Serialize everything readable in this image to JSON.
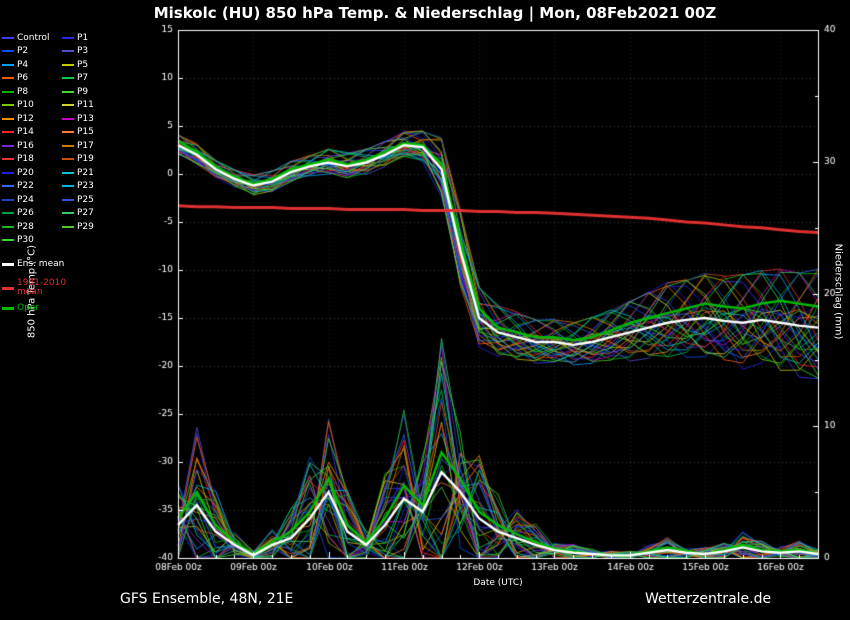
{
  "title": "Miskolc  (HU)  850 hPa Temp. & Niederschlag | Mon, 08Feb2021 00Z",
  "footer": {
    "left": "GFS Ensemble, 48N, 21E",
    "right": "Wetterzentrale.de"
  },
  "axes": {
    "left_label": "850 hPa Temp (°C)",
    "right_label": "Niederschlag (mm)",
    "x_label": "Date (UTC)",
    "left_ticks": [
      15,
      10,
      5,
      0,
      -5,
      -10,
      -15,
      -20,
      -25,
      -30,
      -35,
      -40
    ],
    "right_ticks": [
      40,
      30,
      20,
      10,
      0
    ],
    "x_tick_labels": [
      "08Feb 00z",
      "09Feb 00z",
      "10Feb 00z",
      "11Feb 00z",
      "12Feb 00z",
      "13Feb 00z",
      "14Feb 00z",
      "15Feb 00z",
      "16Feb 00z"
    ],
    "temp_range": [
      -40,
      15
    ],
    "precip_range": [
      0,
      40
    ]
  },
  "legend": {
    "members": [
      {
        "label": "Control",
        "color": "#3a3aff"
      },
      {
        "label": "P1",
        "color": "#2626e6"
      },
      {
        "label": "P2",
        "color": "#0050ff"
      },
      {
        "label": "P3",
        "color": "#5050cc"
      },
      {
        "label": "P4",
        "color": "#00a0ff"
      },
      {
        "label": "P5",
        "color": "#c8c800"
      },
      {
        "label": "P6",
        "color": "#ff5a00"
      },
      {
        "label": "P7",
        "color": "#00c850"
      },
      {
        "label": "P8",
        "color": "#00b400"
      },
      {
        "label": "P9",
        "color": "#3cdc3c"
      },
      {
        "label": "P10",
        "color": "#78c800"
      },
      {
        "label": "P11",
        "color": "#d2d232"
      },
      {
        "label": "P12",
        "color": "#ff8c00"
      },
      {
        "label": "P13",
        "color": "#c800c8"
      },
      {
        "label": "P14",
        "color": "#ff2020"
      },
      {
        "label": "P15",
        "color": "#ff7a3c"
      },
      {
        "label": "P16",
        "color": "#7a28c8"
      },
      {
        "label": "P17",
        "color": "#d27800"
      },
      {
        "label": "P18",
        "color": "#e63232"
      },
      {
        "label": "P19",
        "color": "#c85000"
      },
      {
        "label": "P20",
        "color": "#2020dc"
      },
      {
        "label": "P21",
        "color": "#00c8c8"
      },
      {
        "label": "P22",
        "color": "#3264ff"
      },
      {
        "label": "P23",
        "color": "#00b4dc"
      },
      {
        "label": "P24",
        "color": "#2040c0"
      },
      {
        "label": "P25",
        "color": "#3050e0"
      },
      {
        "label": "P26",
        "color": "#00a044"
      },
      {
        "label": "P27",
        "color": "#32c864"
      },
      {
        "label": "P28",
        "color": "#20b420"
      },
      {
        "label": "P29",
        "color": "#50c832"
      },
      {
        "label": "P30",
        "color": "#32dc32"
      }
    ],
    "ens_mean": {
      "label": "Ens. mean",
      "color": "#ffffff"
    },
    "climate": {
      "label_line1": "1981-2010",
      "label_line2": "mean",
      "color": "#e03030"
    },
    "oper": {
      "label": "Oper",
      "color": "#00bb00"
    }
  },
  "chart_data": {
    "type": "line",
    "x_step_hours": 6,
    "x_start": "08Feb2021 00z",
    "x_end": "16Feb2021 12z",
    "temp_ens_mean": [
      3.0,
      2.0,
      0.5,
      -0.5,
      -1.2,
      -0.8,
      0.2,
      0.8,
      1.2,
      0.8,
      1.2,
      2.0,
      3.0,
      2.8,
      0.5,
      -8.0,
      -15.0,
      -16.5,
      -17.0,
      -17.5,
      -17.5,
      -17.8,
      -17.5,
      -17.0,
      -16.5,
      -16.0,
      -15.5,
      -15.2,
      -15.0,
      -15.3,
      -15.5,
      -15.2,
      -15.5,
      -15.8,
      -16.0
    ],
    "temp_spread": [
      1.2,
      1.2,
      1.0,
      1.0,
      1.2,
      1.2,
      1.2,
      1.2,
      1.5,
      1.5,
      1.5,
      1.5,
      1.5,
      1.8,
      3.5,
      4.5,
      3.5,
      3.0,
      2.8,
      2.5,
      2.5,
      2.5,
      2.8,
      3.0,
      3.5,
      4.0,
      4.5,
      4.5,
      5.0,
      5.0,
      5.5,
      5.5,
      6.0,
      6.0,
      6.5
    ],
    "temp_climate_mean": [
      -3.3,
      -3.4,
      -3.4,
      -3.5,
      -3.5,
      -3.5,
      -3.6,
      -3.6,
      -3.6,
      -3.7,
      -3.7,
      -3.7,
      -3.7,
      -3.8,
      -3.8,
      -3.8,
      -3.9,
      -3.9,
      -4.0,
      -4.0,
      -4.1,
      -4.2,
      -4.3,
      -4.4,
      -4.5,
      -4.6,
      -4.8,
      -5.0,
      -5.1,
      -5.3,
      -5.5,
      -5.6,
      -5.8,
      -6.0,
      -6.1
    ],
    "temp_oper": [
      3.5,
      2.3,
      0.8,
      -0.3,
      -1.0,
      -0.5,
      0.5,
      1.0,
      1.5,
      1.0,
      1.5,
      2.3,
      3.2,
      3.0,
      1.0,
      -7.0,
      -14.0,
      -16.0,
      -16.5,
      -17.0,
      -17.0,
      -17.3,
      -17.0,
      -16.3,
      -15.5,
      -15.0,
      -14.5,
      -14.0,
      -13.5,
      -13.8,
      -14.0,
      -13.5,
      -13.2,
      -13.5,
      -13.8
    ],
    "precip_ens_mean": [
      2.5,
      4.0,
      2.0,
      1.0,
      0.2,
      1.0,
      1.5,
      3.0,
      5.0,
      2.0,
      1.0,
      2.5,
      4.5,
      3.5,
      6.5,
      5.0,
      3.0,
      2.0,
      1.5,
      1.0,
      0.6,
      0.4,
      0.3,
      0.2,
      0.2,
      0.4,
      0.6,
      0.4,
      0.3,
      0.5,
      0.8,
      0.5,
      0.4,
      0.5,
      0.3
    ],
    "precip_oper": [
      3.0,
      5.0,
      2.5,
      1.2,
      0.3,
      1.2,
      2.0,
      3.5,
      6.0,
      2.5,
      1.2,
      3.0,
      5.5,
      4.0,
      8.0,
      6.0,
      3.5,
      2.5,
      1.8,
      1.2,
      0.7,
      0.5,
      0.3,
      0.2,
      0.2,
      0.5,
      0.8,
      0.5,
      0.3,
      0.6,
      1.0,
      0.6,
      0.5,
      0.6,
      0.3
    ]
  }
}
